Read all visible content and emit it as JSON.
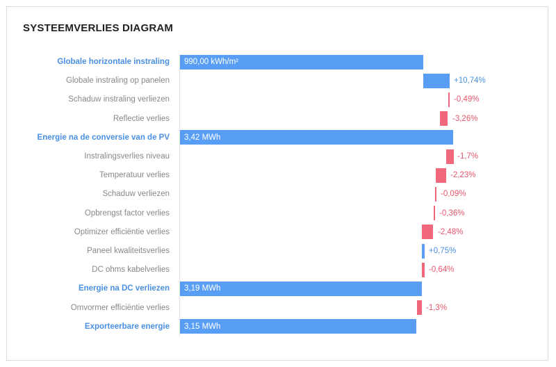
{
  "colors": {
    "total": "#599ef5",
    "positive": "#599ef5",
    "negative": "#f1677c"
  },
  "chart_data": {
    "type": "bar",
    "subtype": "waterfall",
    "title": "SYSTEEMVERLIES DIAGRAM",
    "orientation": "horizontal",
    "rows": [
      {
        "label": "Globale horizontale instraling",
        "kind": "total",
        "value_label": "990,00 kWh/m²",
        "start": 0,
        "end": 100
      },
      {
        "label": "Globale instraling op panelen",
        "kind": "pos",
        "value_label": "+10,74%",
        "start": 100,
        "end": 110.74
      },
      {
        "label": "Schaduw instraling verliezen",
        "kind": "neg",
        "value_label": "-0,49%",
        "start": 110.74,
        "end": 110.25
      },
      {
        "label": "Reflectie verlies",
        "kind": "neg",
        "value_label": "-3,26%",
        "start": 110.25,
        "end": 106.99
      },
      {
        "label": "Energie na de conversie van de PV",
        "kind": "total",
        "value_label": "3,42 MWh",
        "start": 0,
        "end": 112.4
      },
      {
        "label": "Instralingsverlies niveau",
        "kind": "neg",
        "value_label": "-1,7%",
        "start": 112.4,
        "end": 109.3
      },
      {
        "label": "Temperatuur verlies",
        "kind": "neg",
        "value_label": "-2,23%",
        "start": 109.3,
        "end": 105.0
      },
      {
        "label": "Schaduw verliezen",
        "kind": "neg",
        "value_label": "-0,09%",
        "start": 105.0,
        "end": 104.9
      },
      {
        "label": "Opbrengst factor verlies",
        "kind": "neg",
        "value_label": "-0,36%",
        "start": 104.9,
        "end": 104.2
      },
      {
        "label": "Optimizer efficiëntie verlies",
        "kind": "neg",
        "value_label": "-2,48%",
        "start": 104.2,
        "end": 99.5
      },
      {
        "label": "Paneel kwaliteitsverlies",
        "kind": "pos",
        "value_label": "+0,75%",
        "start": 99.5,
        "end": 100.6
      },
      {
        "label": "DC ohms kabelverlies",
        "kind": "neg",
        "value_label": "-0,64%",
        "start": 100.6,
        "end": 99.4
      },
      {
        "label": "Energie na DC verliezen",
        "kind": "total",
        "value_label": "3,19 MWh",
        "start": 0,
        "end": 99.4
      },
      {
        "label": "Omvormer efficiëntie verlies",
        "kind": "neg",
        "value_label": "-1,3%",
        "start": 99.4,
        "end": 97.4
      },
      {
        "label": "Exporteerbare energie",
        "kind": "total",
        "value_label": "3,15 MWh",
        "start": 0,
        "end": 97.1
      }
    ],
    "xlim": [
      0,
      115
    ]
  }
}
